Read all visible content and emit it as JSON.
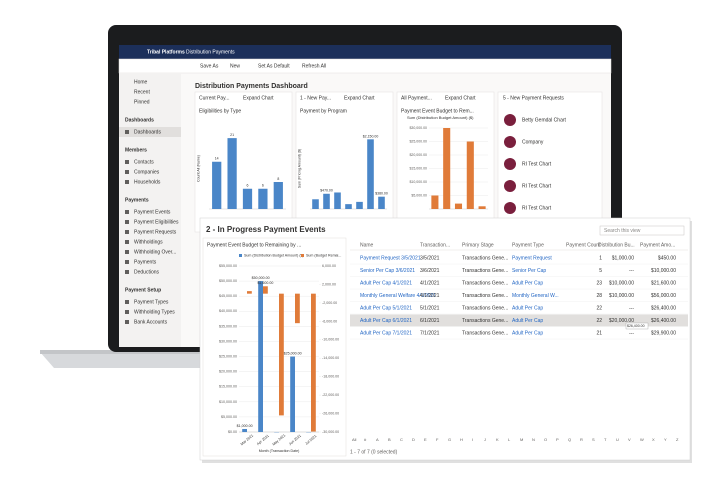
{
  "app": {
    "brand": "Tribal Platforms",
    "area": "Distribution Payments"
  },
  "toolbar": [
    "Save As",
    "New",
    "Set As Default",
    "Refresh All"
  ],
  "sidebar": {
    "top": [
      "Home",
      "Recent",
      "Pinned"
    ],
    "groups": [
      {
        "title": "Dashboards",
        "items": [
          "Dashboards"
        ]
      },
      {
        "title": "Members",
        "items": [
          "Contacts",
          "Companies",
          "Households"
        ]
      },
      {
        "title": "Payments",
        "items": [
          "Payment Events",
          "Payment Eligibilities",
          "Payment Requests",
          "Withholdings",
          "Withholding Over...",
          "Payments",
          "Deductions"
        ]
      },
      {
        "title": "Payment Setup",
        "items": [
          "Payment Types",
          "Withholding Types",
          "Bank Accounts"
        ]
      }
    ]
  },
  "dashboard_title": "Distribution Payments Dashboard",
  "cards": [
    {
      "view": "Current Pay...",
      "action": "Expand Chart",
      "chart_title": "Eligibilities by Type",
      "chart": {
        "type": "bar",
        "ylabel": "Count:All (Name)",
        "values": [
          14,
          21,
          6,
          6,
          8
        ],
        "show_values": true,
        "color": "#4a86c8",
        "ylim": [
          0,
          24
        ]
      }
    },
    {
      "view": "1 - New Pay...",
      "action": "Expand Chart",
      "chart_title": "Payment by Program",
      "chart": {
        "type": "bar",
        "ylabel": "Sum (Pricing Amount) ($)",
        "values": [
          300,
          470,
          510,
          150,
          220,
          2150,
          380
        ],
        "value_labels": [
          null,
          "$470.00",
          null,
          null,
          null,
          "$2,150.00",
          "$380.00"
        ],
        "color": "#4a86c8",
        "ylim": [
          0,
          2500
        ]
      }
    },
    {
      "view": "All Payment...",
      "action": "Expand Chart",
      "chart_title": "Payment Event Budget to Rem...",
      "legend": "Sum (Distribution Budget Amount) ($)",
      "chart": {
        "type": "bar",
        "values": [
          5000,
          30000,
          2000,
          25000,
          1000
        ],
        "color": "#e07b39",
        "ylim": [
          0,
          30000
        ],
        "yticks": [
          {
            "value": 5000,
            "label": "$5,000.00"
          },
          {
            "value": 10000,
            "label": "$10,000.00"
          },
          {
            "value": 15000,
            "label": "$15,000.00"
          },
          {
            "value": 20000,
            "label": "$20,000.00"
          },
          {
            "value": 25000,
            "label": "$25,000.00"
          },
          {
            "value": 30000,
            "label": "$30,000.00"
          }
        ]
      }
    }
  ],
  "requests": {
    "title": "5 - New Payment Requests",
    "items": [
      "Betty Gemdal Chart",
      "Company",
      "RI Test Chart",
      "RI Test Chart",
      "RI Test Chart"
    ]
  },
  "events": {
    "title": "2 - In Progress Payment Events",
    "search": "Search this view",
    "chart_title": "Payment Event Budget to Remaining by ...",
    "chart": {
      "type": "bar",
      "xlabel": "Month (Transaction Date)",
      "categories": [
        "Mar 2021",
        "Apr 2021",
        "May 2021",
        "Jun 2021",
        "Jul 2021"
      ],
      "series": [
        {
          "name": "Sum (Distribution Budget Amount) ($)",
          "color": "#4a86c8",
          "values": [
            1000,
            50000,
            0,
            25000,
            0
          ],
          "value_labels": [
            "$1,000.00",
            "$50,000.00",
            null,
            "$25,000.00",
            null
          ]
        },
        {
          "name": "Sum (Budget Remai...",
          "color": "#e07b39",
          "axis": "y2",
          "values": [
            550,
            1600,
            -26400,
            -6400,
            -29900
          ],
          "value_labels": [
            null,
            "$1,600.00",
            null,
            null,
            null
          ]
        }
      ],
      "ylim": [
        0,
        55000
      ],
      "yticks": [
        {
          "value": 0,
          "label": "$0.00"
        },
        {
          "value": 5000,
          "label": "$5,000.00"
        },
        {
          "value": 10000,
          "label": "$10,000.00"
        },
        {
          "value": 15000,
          "label": "$15,000.00"
        },
        {
          "value": 20000,
          "label": "$20,000.00"
        },
        {
          "value": 25000,
          "label": "$25,000.00"
        },
        {
          "value": 30000,
          "label": "$30,000.00"
        },
        {
          "value": 35000,
          "label": "$35,000.00"
        },
        {
          "value": 40000,
          "label": "$40,000.00"
        },
        {
          "value": 45000,
          "label": "$45,000.00"
        },
        {
          "value": 50000,
          "label": "$50,000.00"
        },
        {
          "value": 55000,
          "label": "$55,000.00"
        }
      ],
      "y2lim": [
        -30000,
        6000
      ],
      "y2ticks": [
        {
          "value": 6000,
          "label": "6,000.00"
        },
        {
          "value": 2000,
          "label": "2,000.00"
        },
        {
          "value": -2000,
          "label": "-2,000.00"
        },
        {
          "value": -6000,
          "label": "-6,000.00"
        },
        {
          "value": -10000,
          "label": "-10,000.00"
        },
        {
          "value": -14000,
          "label": "-14,000.00"
        },
        {
          "value": -18000,
          "label": "-18,000.00"
        },
        {
          "value": -22000,
          "label": "-22,000.00"
        },
        {
          "value": -26000,
          "label": "-26,000.00"
        },
        {
          "value": -30000,
          "label": "-30,000.00"
        }
      ]
    },
    "table": {
      "columns": [
        "Name",
        "Transaction...",
        "Primary Stage",
        "Payment Type",
        "Payment Count",
        "Distribution Bu...",
        "Payment Amo..."
      ],
      "rows": [
        [
          "Payment Request 3/5/2021",
          "3/5/2021",
          "Transactions Gene...",
          "Payment Request",
          "1",
          "$1,000.00",
          "$450.00"
        ],
        [
          "Senior Per Cap 3/6/2021",
          "3/6/2021",
          "Transactions Gene...",
          "Senior Per Cap",
          "5",
          "---",
          "$10,000.00"
        ],
        [
          "Adult Per Cap 4/1/2021",
          "4/1/2021",
          "Transactions Gene...",
          "Adult Per Cap",
          "23",
          "$10,000.00",
          "$21,600.00"
        ],
        [
          "Monthly General Welfare 4/1/2021",
          "4/1/2021",
          "Transactions Gene...",
          "Monthly General W...",
          "28",
          "$10,000.00",
          "$56,000.00"
        ],
        [
          "Adult Per Cap 5/1/2021",
          "5/1/2021",
          "Transactions Gene...",
          "Adult Per Cap",
          "22",
          "---",
          "$26,400.00"
        ],
        [
          "Adult Per Cap 6/1/2021",
          "6/1/2021",
          "Transactions Gene...",
          "Adult Per Cap",
          "22",
          "$20,000.00",
          "$26,400.00"
        ],
        [
          "Adult Per Cap 7/1/2021",
          "7/1/2021",
          "Transactions Gene...",
          "Adult Per Cap",
          "21",
          "---",
          "$29,900.00"
        ]
      ],
      "tooltip": "$26,400.00",
      "footer": "1 - 7 of 7 (0 selected)",
      "alphabet": [
        "All",
        "#",
        "A",
        "B",
        "C",
        "D",
        "E",
        "F",
        "G",
        "H",
        "I",
        "J",
        "K",
        "L",
        "M",
        "N",
        "O",
        "P",
        "Q",
        "R",
        "S",
        "T",
        "U",
        "V",
        "W",
        "X",
        "Y",
        "Z"
      ]
    }
  }
}
